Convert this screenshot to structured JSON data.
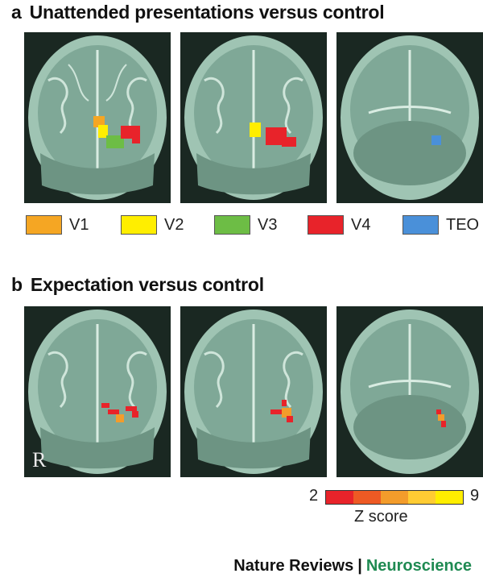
{
  "panel_a": {
    "letter": "a",
    "title": "Unattended presentations versus control"
  },
  "panel_b": {
    "letter": "b",
    "title": "Expectation versus control"
  },
  "legend": [
    {
      "label": "V1",
      "color": "#f5a623"
    },
    {
      "label": "V2",
      "color": "#ffee00"
    },
    {
      "label": "V3",
      "color": "#6dbd45"
    },
    {
      "label": "V4",
      "color": "#e8232a"
    },
    {
      "label": "TEO",
      "color": "#4a90d9"
    }
  ],
  "orientation_mark": "R",
  "zscore": {
    "min": "2",
    "max": "9",
    "label": "Z score",
    "colors": [
      "#e8232a",
      "#ee5a24",
      "#f39c2b",
      "#ffcc33",
      "#ffee00"
    ]
  },
  "credit": {
    "publisher": "Nature Reviews",
    "separator": "|",
    "journal": "Neuroscience"
  }
}
